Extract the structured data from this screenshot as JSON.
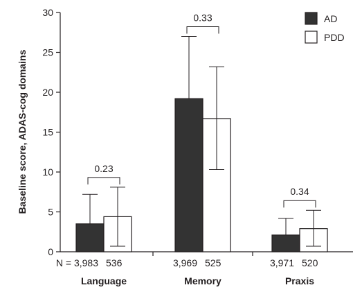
{
  "chart_data": {
    "type": "bar",
    "title": "",
    "xlabel": "",
    "ylabel": "Baseline score, ADAS-cog domains",
    "ylim": [
      0,
      30
    ],
    "yticks": [
      0,
      5,
      10,
      15,
      20,
      25,
      30
    ],
    "categories": [
      "Language",
      "Memory",
      "Praxis"
    ],
    "series": [
      {
        "name": "AD",
        "color": "#333333",
        "values": [
          3.5,
          19.2,
          2.1
        ],
        "error_upper": [
          7.2,
          27.0,
          4.2
        ],
        "error_lower": [
          0,
          0,
          0
        ],
        "n": [
          "3,983",
          "3,969",
          "3,971"
        ]
      },
      {
        "name": "PDD",
        "color": "#ffffff",
        "values": [
          4.4,
          16.7,
          2.9
        ],
        "error_upper": [
          8.1,
          23.2,
          5.2
        ],
        "error_lower": [
          0.7,
          10.3,
          0.7
        ],
        "n": [
          "536",
          "525",
          "520"
        ]
      }
    ],
    "n_prefix": "N = ",
    "p_values": [
      "0.23",
      "0.33",
      "0.34"
    ],
    "legend": {
      "position": "top-right"
    },
    "grid": false
  }
}
